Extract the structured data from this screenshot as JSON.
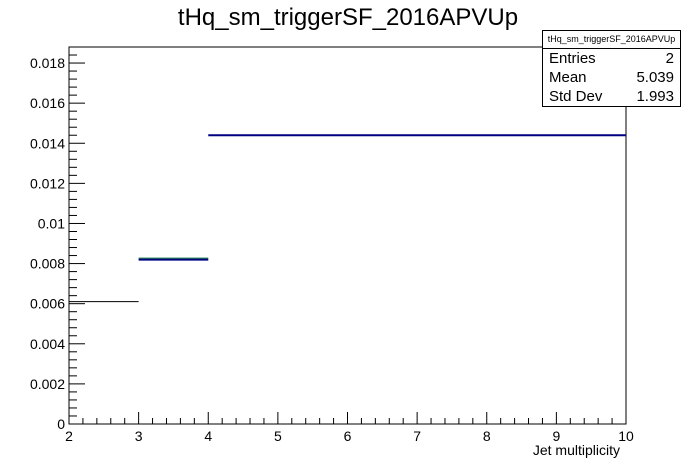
{
  "chart_data": {
    "type": "histogram",
    "title": "tHq_sm_triggerSF_2016APVUp",
    "xlabel": "Jet multiplicity",
    "ylabel": "",
    "xlim": [
      2,
      10
    ],
    "ylim": [
      0,
      0.0188
    ],
    "x_ticks": [
      "2",
      "3",
      "4",
      "5",
      "6",
      "7",
      "8",
      "9",
      "10"
    ],
    "y_ticks": [
      "0",
      "0.002",
      "0.004",
      "0.006",
      "0.008",
      "0.01",
      "0.012",
      "0.014",
      "0.016",
      "0.018"
    ],
    "bins": [
      {
        "x0": 2,
        "x1": 3,
        "value": 0.0061,
        "color": "#000000"
      },
      {
        "x0": 3,
        "x1": 4,
        "value": 0.0082,
        "color": "#000080",
        "band": [
          0.0082,
          0.0083
        ],
        "band_color": "#2e8b57"
      },
      {
        "x0": 4,
        "x1": 10,
        "value": 0.0144,
        "color": "#000080"
      }
    ],
    "stats_box": {
      "name": "tHq_sm_triggerSF_2016APVUp",
      "entries_label": "Entries",
      "entries": "2",
      "mean_label": "Mean",
      "mean": "5.039",
      "stddev_label": "Std Dev",
      "stddev": "1.993"
    }
  }
}
